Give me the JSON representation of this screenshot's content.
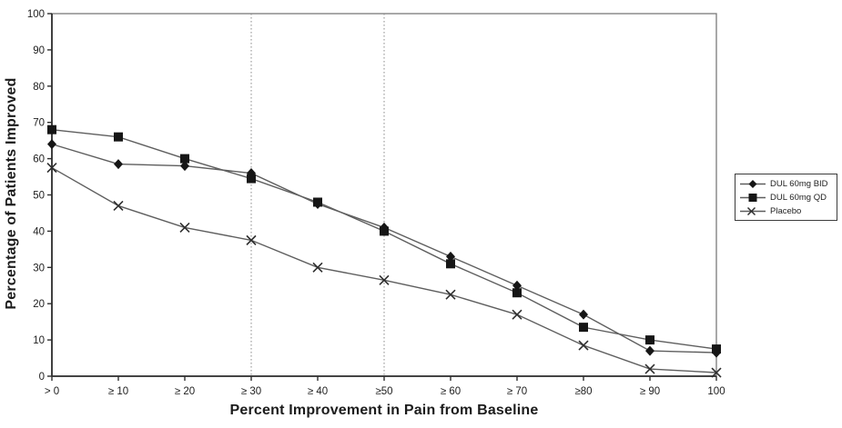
{
  "chart_data": {
    "type": "line",
    "title": "",
    "xlabel": "Percent Improvement in Pain from Baseline",
    "ylabel": "Percentage of Patients Improved",
    "x": [
      0,
      10,
      20,
      30,
      40,
      50,
      60,
      70,
      80,
      90,
      100
    ],
    "categories": [
      "> 0",
      "≥ 10",
      "≥ 20",
      "≥ 30",
      "≥ 40",
      "≥50",
      "≥ 60",
      "≥ 70",
      "≥80",
      "≥ 90",
      "100"
    ],
    "xlim": [
      0,
      100
    ],
    "ylim": [
      0,
      100
    ],
    "yticks": [
      0,
      10,
      20,
      30,
      40,
      50,
      60,
      70,
      80,
      90,
      100
    ],
    "reference_lines_x": [
      30,
      50
    ],
    "grid": false,
    "legend_position": "right-outside",
    "series": [
      {
        "name": "DUL 60mg BID",
        "marker": "diamond",
        "values": [
          64,
          58.5,
          58,
          56,
          47.5,
          41,
          33,
          25,
          17,
          7,
          6.5
        ]
      },
      {
        "name": "DUL 60mg QD",
        "marker": "square",
        "values": [
          68,
          66,
          60,
          54.5,
          48,
          40,
          31,
          23,
          13.5,
          10,
          7.5
        ]
      },
      {
        "name": "Placebo",
        "marker": "x",
        "values": [
          57.5,
          47,
          41,
          37.5,
          30,
          26.5,
          22.5,
          17,
          8.5,
          2,
          1
        ]
      }
    ]
  },
  "colors": {
    "series_line": "#5e5e5e",
    "marker": "#161616",
    "axis": "#2f2f2f",
    "frame": "#7a7a7a",
    "dashed_line": "#8a8a8a",
    "text": "#1e1e1e"
  }
}
